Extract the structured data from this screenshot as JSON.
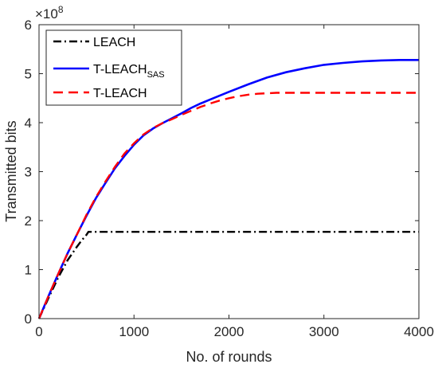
{
  "chart_data": {
    "type": "line",
    "xlabel": "No. of rounds",
    "ylabel": "Transmitted bits",
    "y_exponent_label": "×10",
    "y_exponent_power": "8",
    "xlim": [
      0,
      4000
    ],
    "ylim": [
      0,
      6
    ],
    "x_ticks": [
      "0",
      "1000",
      "2000",
      "3000",
      "4000"
    ],
    "y_ticks": [
      "0",
      "1",
      "2",
      "3",
      "4",
      "5",
      "6"
    ],
    "x_tick_values": [
      0,
      1000,
      2000,
      3000,
      4000
    ],
    "y_tick_values": [
      0,
      1,
      2,
      3,
      4,
      5,
      6
    ],
    "grid": false,
    "legend_position": "top-left",
    "series": [
      {
        "name": "LEACH",
        "name_main": "LEACH",
        "name_sub": "",
        "color": "#000000",
        "style": "dash-dot",
        "x": [
          0,
          100,
          200,
          300,
          400,
          450,
          500,
          520,
          1000,
          2000,
          3000,
          4000
        ],
        "y": [
          0,
          0.42,
          0.83,
          1.19,
          1.47,
          1.6,
          1.71,
          1.77,
          1.77,
          1.77,
          1.77,
          1.77
        ]
      },
      {
        "name": "T-LEACHSAS",
        "name_main": "T-LEACH",
        "name_sub": "SAS",
        "color": "#0000ff",
        "style": "solid",
        "x": [
          0,
          100,
          200,
          300,
          400,
          500,
          600,
          700,
          800,
          900,
          1000,
          1100,
          1200,
          1300,
          1400,
          1500,
          1600,
          1700,
          1800,
          2000,
          2200,
          2400,
          2600,
          2800,
          3000,
          3200,
          3400,
          3600,
          3800,
          4000
        ],
        "y": [
          0,
          0.46,
          0.9,
          1.33,
          1.72,
          2.1,
          2.46,
          2.77,
          3.07,
          3.32,
          3.55,
          3.74,
          3.88,
          3.99,
          4.09,
          4.19,
          4.3,
          4.39,
          4.47,
          4.63,
          4.78,
          4.92,
          5.03,
          5.11,
          5.18,
          5.22,
          5.25,
          5.27,
          5.28,
          5.28
        ]
      },
      {
        "name": "T-LEACH",
        "name_main": "T-LEACH",
        "name_sub": "",
        "color": "#ff0000",
        "style": "dashed",
        "x": [
          0,
          100,
          200,
          300,
          400,
          500,
          600,
          700,
          800,
          900,
          1000,
          1100,
          1200,
          1300,
          1400,
          1500,
          1600,
          1700,
          1800,
          1900,
          2000,
          2100,
          2200,
          2300,
          2500,
          3000,
          3500,
          4000
        ],
        "y": [
          0,
          0.46,
          0.9,
          1.33,
          1.72,
          2.12,
          2.48,
          2.8,
          3.1,
          3.37,
          3.58,
          3.76,
          3.89,
          3.99,
          4.07,
          4.16,
          4.24,
          4.32,
          4.39,
          4.45,
          4.5,
          4.54,
          4.57,
          4.59,
          4.61,
          4.61,
          4.61,
          4.61
        ]
      }
    ]
  }
}
